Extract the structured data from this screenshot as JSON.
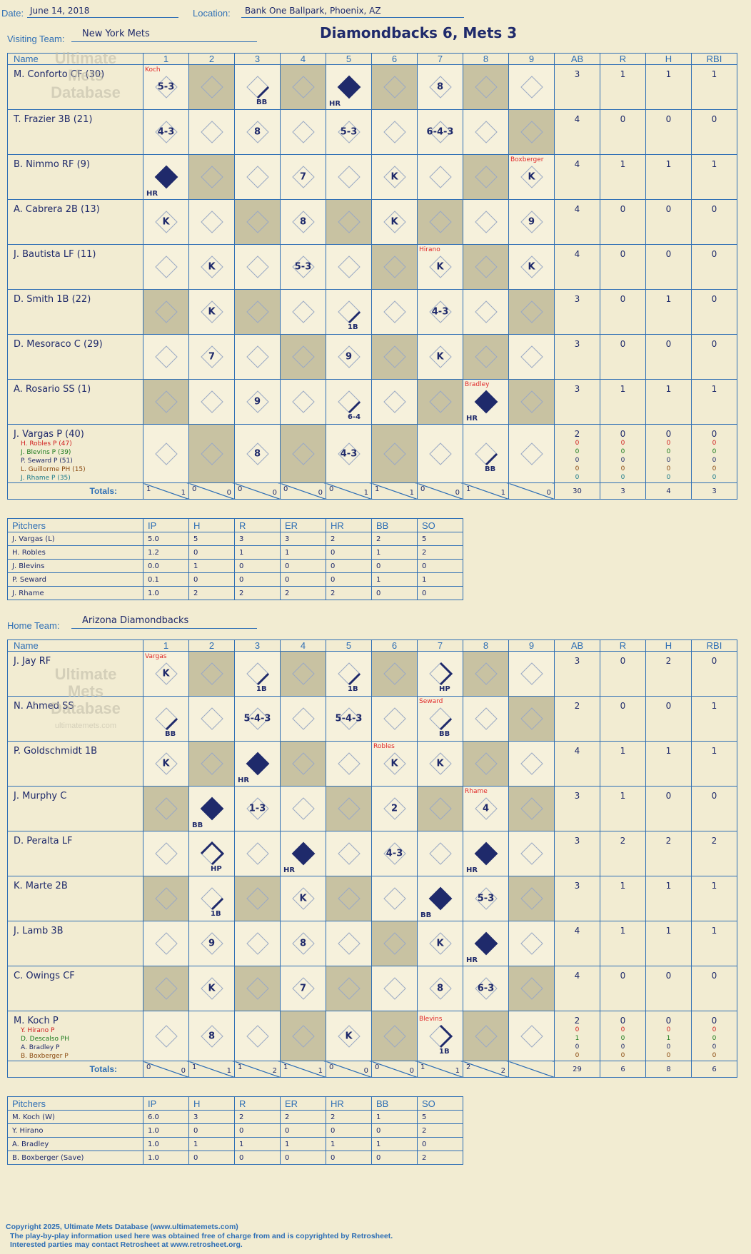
{
  "header": {
    "date_label": "Date:",
    "date": "June 14, 2018",
    "location_label": "Location:",
    "location": "Bank One Ballpark, Phoenix, AZ",
    "visiting_label": "Visiting Team:",
    "visiting_team": "New York Mets",
    "home_label": "Home Team:",
    "home_team": "Arizona Diamondbacks",
    "headline": "Diamondbacks 6, Mets 3"
  },
  "watermark": {
    "line1": "Ultimate",
    "line2": "Mets",
    "line3": "Database",
    "line4": "ultimatemets.com"
  },
  "columns": {
    "name": "Name",
    "innings": [
      "1",
      "2",
      "3",
      "4",
      "5",
      "6",
      "7",
      "8",
      "9"
    ],
    "stats": [
      "AB",
      "R",
      "H",
      "RBI"
    ]
  },
  "visitors": {
    "lineup": [
      {
        "name": "M. Conforto CF (30)",
        "ab": "3",
        "r": "1",
        "h": "1",
        "rbi": "1",
        "cells": [
          {
            "i": 0,
            "t": "5-3",
            "note": "Koch"
          },
          {
            "i": 2,
            "t": "BB",
            "path": 1
          },
          {
            "i": 4,
            "t": "HR",
            "run": true
          },
          {
            "i": 6,
            "t": "8"
          }
        ]
      },
      {
        "name": "T. Frazier 3B (21)",
        "ab": "4",
        "r": "0",
        "h": "0",
        "rbi": "0",
        "cells": [
          {
            "i": 0,
            "t": "4-3"
          },
          {
            "i": 2,
            "t": "8"
          },
          {
            "i": 4,
            "t": "5-3"
          },
          {
            "i": 6,
            "t": "6-4-3"
          }
        ]
      },
      {
        "name": "B. Nimmo RF (9)",
        "ab": "4",
        "r": "1",
        "h": "1",
        "rbi": "1",
        "cells": [
          {
            "i": 0,
            "t": "HR",
            "run": true
          },
          {
            "i": 3,
            "t": "7"
          },
          {
            "i": 5,
            "t": "K"
          },
          {
            "i": 8,
            "t": "K",
            "note": "Boxberger"
          }
        ]
      },
      {
        "name": "A. Cabrera 2B (13)",
        "ab": "4",
        "r": "0",
        "h": "0",
        "rbi": "0",
        "cells": [
          {
            "i": 0,
            "t": "K"
          },
          {
            "i": 3,
            "t": "8"
          },
          {
            "i": 5,
            "t": "K"
          },
          {
            "i": 8,
            "t": "9"
          }
        ]
      },
      {
        "name": "J. Bautista LF (11)",
        "ab": "4",
        "r": "0",
        "h": "0",
        "rbi": "0",
        "cells": [
          {
            "i": 1,
            "t": "K"
          },
          {
            "i": 3,
            "t": "5-3"
          },
          {
            "i": 6,
            "t": "K",
            "note": "Hirano"
          },
          {
            "i": 8,
            "t": "K"
          }
        ]
      },
      {
        "name": "D. Smith 1B (22)",
        "ab": "3",
        "r": "0",
        "h": "1",
        "rbi": "0",
        "cells": [
          {
            "i": 1,
            "t": "K"
          },
          {
            "i": 4,
            "t": "1B",
            "path": 1
          },
          {
            "i": 6,
            "t": "4-3"
          }
        ]
      },
      {
        "name": "D. Mesoraco C (29)",
        "ab": "3",
        "r": "0",
        "h": "0",
        "rbi": "0",
        "cells": [
          {
            "i": 1,
            "t": "7"
          },
          {
            "i": 4,
            "t": "9"
          },
          {
            "i": 6,
            "t": "K"
          }
        ]
      },
      {
        "name": "A. Rosario SS (1)",
        "ab": "3",
        "r": "1",
        "h": "1",
        "rbi": "1",
        "cells": [
          {
            "i": 2,
            "t": "9"
          },
          {
            "i": 4,
            "t": "6-4",
            "path": 1
          },
          {
            "i": 7,
            "t": "HR",
            "run": true,
            "note": "Bradley"
          }
        ]
      },
      {
        "name": "J. Vargas P (40)",
        "ab": "2",
        "r": "0",
        "h": "0",
        "rbi": "0",
        "cells": [
          {
            "i": 2,
            "t": "8"
          },
          {
            "i": 4,
            "t": "4-3"
          },
          {
            "i": 7,
            "t": "BB",
            "path": 1
          }
        ],
        "subs": [
          {
            "name": "H. Robles P (47)",
            "color": "#d02020"
          },
          {
            "name": "J. Blevins P (39)",
            "color": "#1b7a1b"
          },
          {
            "name": "P. Seward P (51)",
            "color": "#1f2a6b"
          },
          {
            "name": "L. Guillorme PH (15)",
            "color": "#8a4a10"
          },
          {
            "name": "J. Rhame P (35)",
            "color": "#1a7a8a"
          }
        ],
        "substats": [
          [
            "0",
            "0",
            "0",
            "0"
          ],
          [
            "0",
            "0",
            "0",
            "0"
          ],
          [
            "0",
            "0",
            "0",
            "0"
          ],
          [
            "0",
            "0",
            "0",
            "0"
          ],
          [
            "0",
            "0",
            "0",
            "0"
          ]
        ]
      }
    ],
    "totals_label": "Totals:",
    "inning_totals": [
      [
        "1",
        "1"
      ],
      [
        "0",
        "0"
      ],
      [
        "0",
        "0"
      ],
      [
        "0",
        "0"
      ],
      [
        "0",
        "1"
      ],
      [
        "1",
        "1"
      ],
      [
        "0",
        "0"
      ],
      [
        "1",
        "1"
      ],
      [
        "",
        "0"
      ]
    ],
    "totals": [
      "30",
      "3",
      "4",
      "3"
    ],
    "pitchers_header": [
      "Pitchers",
      "IP",
      "H",
      "R",
      "ER",
      "HR",
      "BB",
      "SO"
    ],
    "pitchers": [
      [
        "J. Vargas (L)",
        "5.0",
        "5",
        "3",
        "3",
        "2",
        "2",
        "5"
      ],
      [
        "H. Robles",
        "1.2",
        "0",
        "1",
        "1",
        "0",
        "1",
        "2"
      ],
      [
        "J. Blevins",
        "0.0",
        "1",
        "0",
        "0",
        "0",
        "0",
        "0"
      ],
      [
        "P. Seward",
        "0.1",
        "0",
        "0",
        "0",
        "0",
        "1",
        "1"
      ],
      [
        "J. Rhame",
        "1.0",
        "2",
        "2",
        "2",
        "2",
        "0",
        "0"
      ]
    ]
  },
  "home": {
    "lineup": [
      {
        "name": "J. Jay RF",
        "ab": "3",
        "r": "0",
        "h": "2",
        "rbi": "0",
        "cells": [
          {
            "i": 0,
            "t": "K",
            "note": "Vargas"
          },
          {
            "i": 2,
            "t": "1B",
            "path": 1
          },
          {
            "i": 4,
            "t": "1B",
            "path": 1
          },
          {
            "i": 6,
            "t": "HP",
            "path": 2
          }
        ]
      },
      {
        "name": "N. Ahmed SS",
        "ab": "2",
        "r": "0",
        "h": "0",
        "rbi": "1",
        "cells": [
          {
            "i": 0,
            "t": "BB",
            "path": 1
          },
          {
            "i": 2,
            "t": "5-4-3"
          },
          {
            "i": 4,
            "t": "5-4-3"
          },
          {
            "i": 6,
            "t": "BB",
            "path": 1,
            "note": "Seward"
          }
        ]
      },
      {
        "name": "P. Goldschmidt 1B",
        "ab": "4",
        "r": "1",
        "h": "1",
        "rbi": "1",
        "cells": [
          {
            "i": 0,
            "t": "K"
          },
          {
            "i": 2,
            "t": "HR",
            "run": true
          },
          {
            "i": 5,
            "t": "K",
            "note": "Robles"
          },
          {
            "i": 6,
            "t": "K"
          }
        ]
      },
      {
        "name": "J. Murphy C",
        "ab": "3",
        "r": "1",
        "h": "0",
        "rbi": "0",
        "cells": [
          {
            "i": 1,
            "t": "BB",
            "run": true
          },
          {
            "i": 2,
            "t": "1-3"
          },
          {
            "i": 5,
            "t": "2"
          },
          {
            "i": 7,
            "t": "4",
            "note": "Rhame"
          }
        ]
      },
      {
        "name": "D. Peralta LF",
        "ab": "3",
        "r": "2",
        "h": "2",
        "rbi": "2",
        "cells": [
          {
            "i": 1,
            "t": "HP",
            "path": 3
          },
          {
            "i": 3,
            "t": "HR",
            "run": true
          },
          {
            "i": 5,
            "t": "4-3"
          },
          {
            "i": 7,
            "t": "HR",
            "run": true
          }
        ]
      },
      {
        "name": "K. Marte 2B",
        "ab": "3",
        "r": "1",
        "h": "1",
        "rbi": "1",
        "cells": [
          {
            "i": 1,
            "t": "1B",
            "path": 1
          },
          {
            "i": 3,
            "t": "K"
          },
          {
            "i": 6,
            "t": "BB",
            "run": true
          },
          {
            "i": 7,
            "t": "5-3"
          }
        ]
      },
      {
        "name": "J. Lamb 3B",
        "ab": "4",
        "r": "1",
        "h": "1",
        "rbi": "1",
        "cells": [
          {
            "i": 1,
            "t": "9"
          },
          {
            "i": 3,
            "t": "8"
          },
          {
            "i": 6,
            "t": "K"
          },
          {
            "i": 7,
            "t": "HR",
            "run": true
          }
        ]
      },
      {
        "name": "C. Owings CF",
        "ab": "4",
        "r": "0",
        "h": "0",
        "rbi": "0",
        "cells": [
          {
            "i": 1,
            "t": "K"
          },
          {
            "i": 3,
            "t": "7"
          },
          {
            "i": 6,
            "t": "8"
          },
          {
            "i": 7,
            "t": "6-3"
          }
        ]
      },
      {
        "name": "M. Koch P",
        "ab": "2",
        "r": "0",
        "h": "0",
        "rbi": "0",
        "cells": [
          {
            "i": 1,
            "t": "8"
          },
          {
            "i": 4,
            "t": "K"
          },
          {
            "i": 6,
            "t": "1B",
            "path": 2,
            "note": "Blevins"
          }
        ],
        "subs": [
          {
            "name": "Y. Hirano P",
            "color": "#d02020"
          },
          {
            "name": "D. Descalso PH",
            "color": "#1b7a1b"
          },
          {
            "name": "A. Bradley P",
            "color": "#1f2a6b"
          },
          {
            "name": "B. Boxberger P",
            "color": "#8a4a10"
          }
        ],
        "substats": [
          [
            "0",
            "0",
            "0",
            "0"
          ],
          [
            "1",
            "0",
            "1",
            "0"
          ],
          [
            "0",
            "0",
            "0",
            "0"
          ],
          [
            "0",
            "0",
            "0",
            "0"
          ]
        ]
      }
    ],
    "totals_label": "Totals:",
    "inning_totals": [
      [
        "0",
        "0"
      ],
      [
        "1",
        "1"
      ],
      [
        "1",
        "2"
      ],
      [
        "1",
        "1"
      ],
      [
        "0",
        "0"
      ],
      [
        "0",
        "0"
      ],
      [
        "1",
        "1"
      ],
      [
        "2",
        "2"
      ],
      [
        "",
        ""
      ]
    ],
    "totals": [
      "29",
      "6",
      "8",
      "6"
    ],
    "pitchers_header": [
      "Pitchers",
      "IP",
      "H",
      "R",
      "ER",
      "HR",
      "BB",
      "SO"
    ],
    "pitchers": [
      [
        "M. Koch (W)",
        "6.0",
        "3",
        "2",
        "2",
        "2",
        "1",
        "5"
      ],
      [
        "Y. Hirano",
        "1.0",
        "0",
        "0",
        "0",
        "0",
        "0",
        "2"
      ],
      [
        "A. Bradley",
        "1.0",
        "1",
        "1",
        "1",
        "1",
        "1",
        "0"
      ],
      [
        "B. Boxberger (Save)",
        "1.0",
        "0",
        "0",
        "0",
        "0",
        "0",
        "2"
      ]
    ]
  },
  "footer": {
    "line1": "Copyright 2025, Ultimate Mets Database (www.ultimatemets.com)",
    "line2": "The play-by-play information used here was obtained free of charge from and is copyrighted by Retrosheet.",
    "line3": "Interested parties may contact Retrosheet at www.retrosheet.org."
  }
}
